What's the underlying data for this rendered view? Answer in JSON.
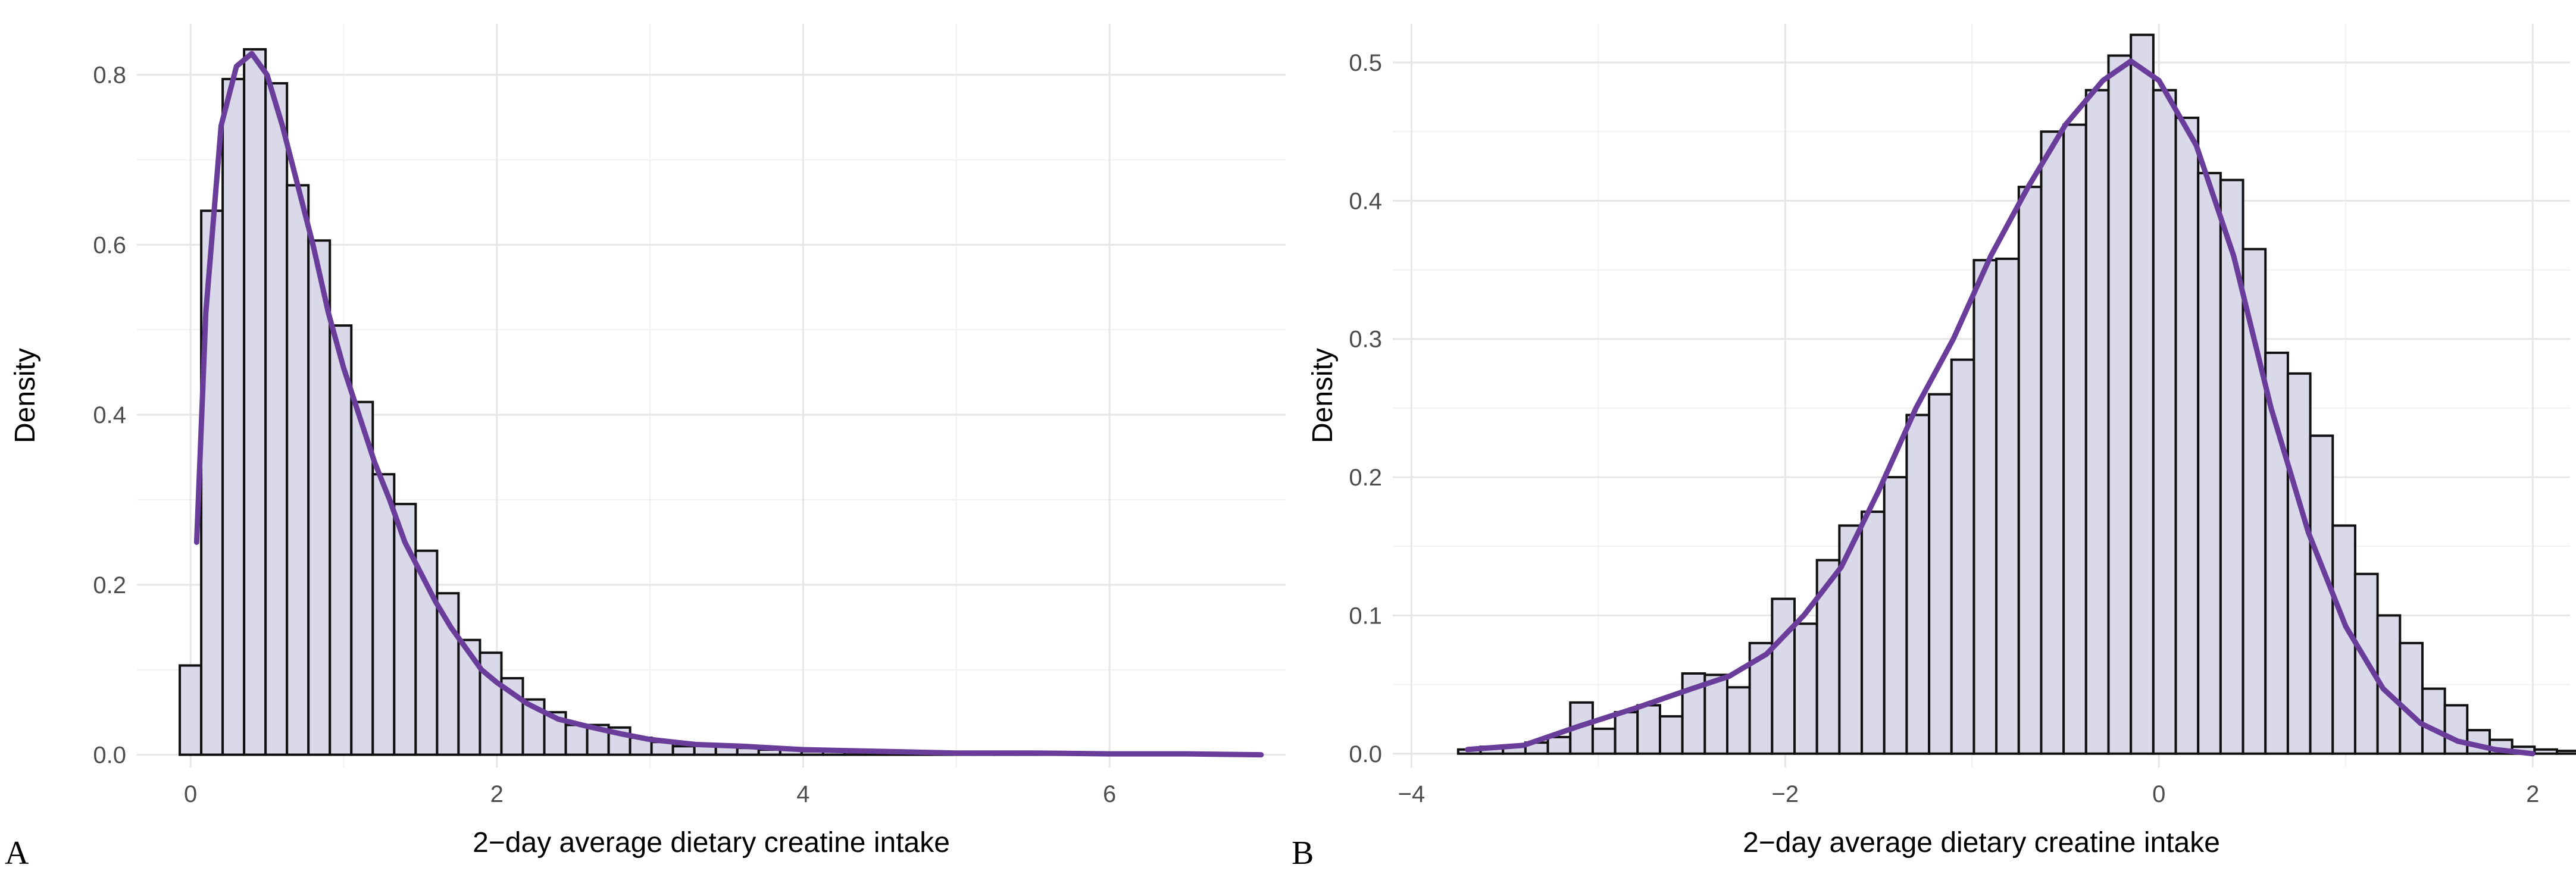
{
  "chart_data": [
    {
      "type": "histogram",
      "panel_label": "A",
      "xlabel": "2−day average dietary creatine intake",
      "ylabel": "Density",
      "xlim": [
        -0.35,
        7.15
      ],
      "ylim": [
        -0.015,
        0.86
      ],
      "x_ticks": [
        0,
        2,
        4,
        6
      ],
      "y_ticks": [
        0.0,
        0.2,
        0.4,
        0.6,
        0.8
      ],
      "x_tick_labels": [
        "0",
        "2",
        "4",
        "6"
      ],
      "y_tick_labels": [
        "0.0",
        "0.2",
        "0.4",
        "0.6",
        "0.8"
      ],
      "grid": true,
      "bar_fill": "#d9d9ea",
      "bar_edge": "#111111",
      "curve_color": "#6a3d9a",
      "bin_start": -0.07,
      "bin_width": 0.14,
      "bin_values": [
        0.105,
        0.64,
        0.795,
        0.83,
        0.79,
        0.67,
        0.605,
        0.505,
        0.415,
        0.33,
        0.295,
        0.24,
        0.19,
        0.135,
        0.12,
        0.09,
        0.065,
        0.05,
        0.035,
        0.035,
        0.032,
        0.02,
        0.015,
        0.01,
        0.012,
        0.01,
        0.008,
        0.006,
        0.006,
        0.004,
        0.004,
        0.003,
        0.003,
        0.003,
        0.002,
        0.002,
        0.002,
        0.002,
        0.002,
        0.002,
        0.002,
        0.002,
        0.001,
        0.001,
        0.001,
        0.001,
        0.001,
        0.001,
        0.001,
        0.001
      ],
      "density_curve": {
        "x": [
          0.04,
          0.1,
          0.2,
          0.3,
          0.4,
          0.5,
          0.6,
          0.7,
          0.8,
          0.9,
          1.0,
          1.1,
          1.2,
          1.3,
          1.4,
          1.5,
          1.6,
          1.7,
          1.8,
          1.9,
          2.0,
          2.2,
          2.4,
          2.6,
          2.8,
          3.0,
          3.3,
          3.6,
          4.0,
          4.5,
          5.0,
          5.5,
          6.0,
          6.5,
          6.99
        ],
        "y": [
          0.25,
          0.52,
          0.74,
          0.81,
          0.825,
          0.8,
          0.74,
          0.67,
          0.6,
          0.52,
          0.455,
          0.4,
          0.345,
          0.3,
          0.25,
          0.215,
          0.18,
          0.15,
          0.125,
          0.1,
          0.085,
          0.06,
          0.042,
          0.033,
          0.025,
          0.018,
          0.012,
          0.01,
          0.006,
          0.004,
          0.002,
          0.002,
          0.001,
          0.001,
          0.0
        ]
      }
    },
    {
      "type": "histogram",
      "panel_label": "B",
      "xlabel": "2−day average dietary creatine intake",
      "ylabel": "Density",
      "xlim": [
        -4.1,
        2.2
      ],
      "ylim": [
        -0.01,
        0.528
      ],
      "x_ticks": [
        -4,
        -2,
        0,
        2
      ],
      "y_ticks": [
        0.0,
        0.1,
        0.2,
        0.3,
        0.4,
        0.5
      ],
      "x_tick_labels": [
        "−4",
        "−2",
        "0",
        "2"
      ],
      "y_tick_labels": [
        "0.0",
        "0.1",
        "0.2",
        "0.3",
        "0.4",
        "0.5"
      ],
      "grid": true,
      "bar_fill": "#d9d9ea",
      "bar_edge": "#111111",
      "curve_color": "#6a3d9a",
      "bin_start": -3.75,
      "bin_width": 0.12,
      "bin_values": [
        0.003,
        0.005,
        0.005,
        0.008,
        0.012,
        0.037,
        0.018,
        0.03,
        0.035,
        0.027,
        0.058,
        0.057,
        0.048,
        0.08,
        0.112,
        0.094,
        0.14,
        0.165,
        0.175,
        0.2,
        0.245,
        0.26,
        0.285,
        0.357,
        0.358,
        0.41,
        0.45,
        0.455,
        0.48,
        0.505,
        0.52,
        0.48,
        0.46,
        0.42,
        0.415,
        0.365,
        0.29,
        0.275,
        0.23,
        0.165,
        0.13,
        0.1,
        0.08,
        0.047,
        0.035,
        0.017,
        0.01,
        0.005,
        0.003,
        0.002
      ],
      "density_curve": {
        "x": [
          -3.7,
          -3.4,
          -3.1,
          -2.8,
          -2.5,
          -2.3,
          -2.1,
          -1.9,
          -1.7,
          -1.5,
          -1.3,
          -1.1,
          -0.9,
          -0.7,
          -0.5,
          -0.3,
          -0.15,
          0.0,
          0.2,
          0.4,
          0.6,
          0.8,
          1.0,
          1.2,
          1.4,
          1.6,
          1.8,
          2.0
        ],
        "y": [
          0.003,
          0.006,
          0.02,
          0.033,
          0.047,
          0.056,
          0.072,
          0.1,
          0.135,
          0.19,
          0.25,
          0.3,
          0.36,
          0.41,
          0.455,
          0.487,
          0.501,
          0.487,
          0.44,
          0.36,
          0.25,
          0.16,
          0.092,
          0.047,
          0.022,
          0.009,
          0.003,
          0.0
        ]
      }
    }
  ]
}
